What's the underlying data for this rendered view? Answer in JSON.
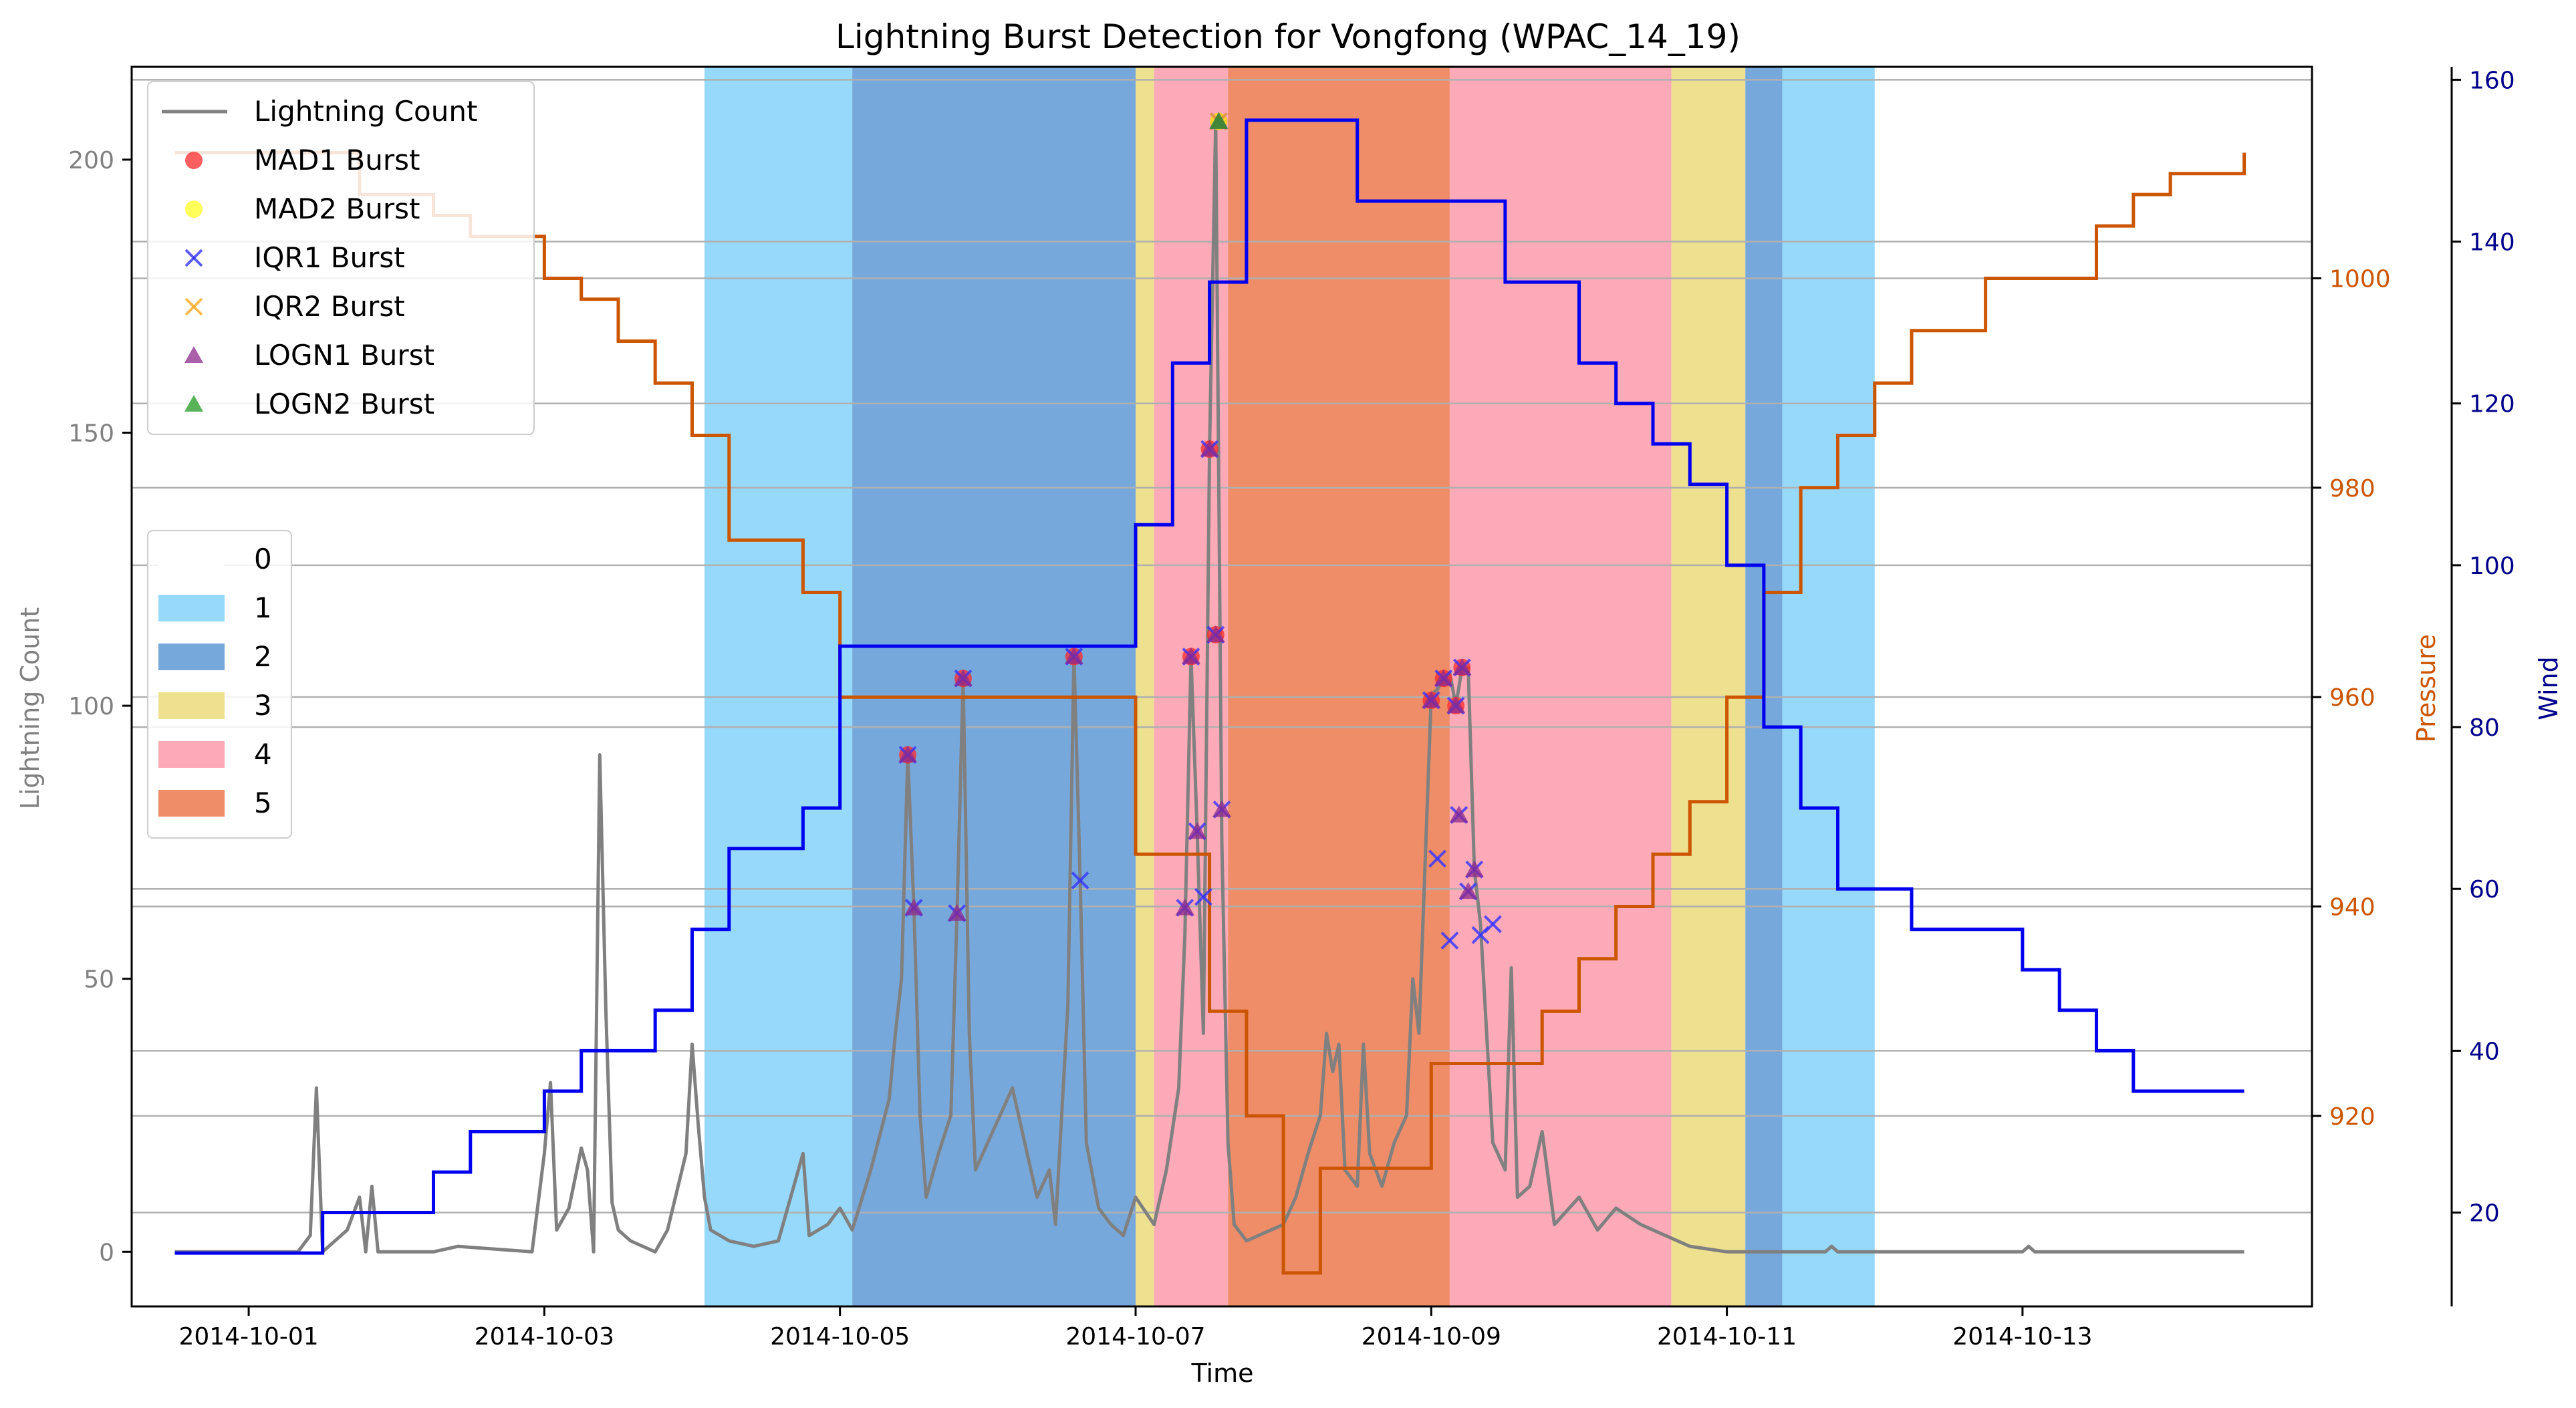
{
  "chart_data": {
    "type": "line",
    "title": "Lightning Burst Detection for Vongfong (WPAC_14_19)",
    "xlabel": "Time",
    "ylabel_left": "Lightning Count",
    "ylabel_pressure": "Pressure",
    "ylabel_wind": "Wind",
    "x_range": [
      "2014-09-30T05:00",
      "2014-10-14T23:00"
    ],
    "ylim_left": [
      -10,
      217
    ],
    "ylim_pressure": [
      901.8,
      1020.2
    ],
    "ylim_wind": [
      8.4,
      161.6
    ],
    "x_ticks": [
      "2014-10-01",
      "2014-10-03",
      "2014-10-05",
      "2014-10-07",
      "2014-10-09",
      "2014-10-11",
      "2014-10-13"
    ],
    "y_ticks_left": [
      0,
      50,
      100,
      150,
      200
    ],
    "y_ticks_pressure": [
      920,
      940,
      960,
      980,
      1000
    ],
    "y_ticks_wind": [
      20,
      40,
      60,
      80,
      100,
      120,
      140,
      160
    ],
    "grid": "horizontal",
    "colors": {
      "lightning": "#808080",
      "pressure": "#cc5500",
      "wind": "#0000ee",
      "pressure_axis": "#cc5500",
      "wind_axis": "#00008b",
      "left_axis": "#808080"
    },
    "category_colors": {
      "0": "#ffffff",
      "1": "#97d9fb",
      "2": "#77a8db",
      "3": "#ede08f",
      "4": "#fcaab8",
      "5": "#ee8d68"
    },
    "category_legend": {
      "entries": [
        {
          "label": "0",
          "color": "#ffffff"
        },
        {
          "label": "1",
          "color": "#97d9fb"
        },
        {
          "label": "2",
          "color": "#77a8db"
        },
        {
          "label": "3",
          "color": "#ede08f"
        },
        {
          "label": "4",
          "color": "#fcaab8"
        },
        {
          "label": "5",
          "color": "#ee8d68"
        }
      ]
    },
    "series_legend": {
      "location": "upper-left",
      "entries": [
        {
          "label": "Lightning Count",
          "marker": "line",
          "color": "#808080"
        },
        {
          "label": "MAD1 Burst",
          "marker": "circle",
          "color": "#ff2a2a"
        },
        {
          "label": "MAD2 Burst",
          "marker": "circle",
          "color": "#ffff22"
        },
        {
          "label": "IQR1 Burst",
          "marker": "x",
          "color": "#3333ff"
        },
        {
          "label": "IQR2 Burst",
          "marker": "x",
          "color": "#ffaa22"
        },
        {
          "label": "LOGN1 Burst",
          "marker": "triangle",
          "color": "#8e2a8e"
        },
        {
          "label": "LOGN2 Burst",
          "marker": "triangle",
          "color": "#229922"
        }
      ]
    },
    "category_bands": [
      {
        "start": "2014-10-04T02:00",
        "end": "2014-10-05T02:00",
        "category": 1
      },
      {
        "start": "2014-10-05T02:00",
        "end": "2014-10-07T00:00",
        "category": 2
      },
      {
        "start": "2014-10-07T00:00",
        "end": "2014-10-07T03:00",
        "category": 3
      },
      {
        "start": "2014-10-07T03:00",
        "end": "2014-10-07T15:00",
        "category": 4
      },
      {
        "start": "2014-10-07T15:00",
        "end": "2014-10-09T03:00",
        "category": 5
      },
      {
        "start": "2014-10-09T03:00",
        "end": "2014-10-10T15:00",
        "category": 4
      },
      {
        "start": "2014-10-10T15:00",
        "end": "2014-10-11T03:00",
        "category": 3
      },
      {
        "start": "2014-10-11T03:00",
        "end": "2014-10-11T09:00",
        "category": 2
      },
      {
        "start": "2014-10-11T09:00",
        "end": "2014-10-12T00:00",
        "category": 1
      }
    ],
    "pressure": [
      [
        "2014-09-30T12:00",
        1012
      ],
      [
        "2014-10-01T18:00",
        1008
      ],
      [
        "2014-10-02T06:00",
        1006
      ],
      [
        "2014-10-02T12:00",
        1004
      ],
      [
        "2014-10-03T00:00",
        1000
      ],
      [
        "2014-10-03T06:00",
        998
      ],
      [
        "2014-10-03T12:00",
        994
      ],
      [
        "2014-10-03T18:00",
        990
      ],
      [
        "2014-10-04T00:00",
        985
      ],
      [
        "2014-10-04T06:00",
        975
      ],
      [
        "2014-10-04T18:00",
        970
      ],
      [
        "2014-10-05T00:00",
        960
      ],
      [
        "2014-10-06T00:00",
        960
      ],
      [
        "2014-10-07T00:00",
        945
      ],
      [
        "2014-10-07T12:00",
        930
      ],
      [
        "2014-10-07T18:00",
        920
      ],
      [
        "2014-10-08T00:00",
        905
      ],
      [
        "2014-10-08T06:00",
        915
      ],
      [
        "2014-10-09T00:00",
        925
      ],
      [
        "2014-10-09T18:00",
        930
      ],
      [
        "2014-10-10T00:00",
        935
      ],
      [
        "2014-10-10T06:00",
        940
      ],
      [
        "2014-10-10T12:00",
        945
      ],
      [
        "2014-10-10T18:00",
        950
      ],
      [
        "2014-10-11T00:00",
        960
      ],
      [
        "2014-10-11T06:00",
        970
      ],
      [
        "2014-10-11T12:00",
        980
      ],
      [
        "2014-10-11T18:00",
        985
      ],
      [
        "2014-10-12T00:00",
        990
      ],
      [
        "2014-10-12T06:00",
        995
      ],
      [
        "2014-10-12T18:00",
        1000
      ],
      [
        "2014-10-13T12:00",
        1005
      ],
      [
        "2014-10-13T18:00",
        1008
      ],
      [
        "2014-10-14T00:00",
        1010
      ],
      [
        "2014-10-14T12:00",
        1012
      ]
    ],
    "wind": [
      [
        "2014-09-30T12:00",
        15
      ],
      [
        "2014-10-01T12:00",
        20
      ],
      [
        "2014-10-02T06:00",
        25
      ],
      [
        "2014-10-02T12:00",
        30
      ],
      [
        "2014-10-03T00:00",
        35
      ],
      [
        "2014-10-03T06:00",
        40
      ],
      [
        "2014-10-03T18:00",
        45
      ],
      [
        "2014-10-04T00:00",
        55
      ],
      [
        "2014-10-04T06:00",
        65
      ],
      [
        "2014-10-04T18:00",
        70
      ],
      [
        "2014-10-05T00:00",
        90
      ],
      [
        "2014-10-06T00:00",
        90
      ],
      [
        "2014-10-07T00:00",
        105
      ],
      [
        "2014-10-07T06:00",
        125
      ],
      [
        "2014-10-07T12:00",
        135
      ],
      [
        "2014-10-07T18:00",
        155
      ],
      [
        "2014-10-08T12:00",
        145
      ],
      [
        "2014-10-09T12:00",
        135
      ],
      [
        "2014-10-10T00:00",
        125
      ],
      [
        "2014-10-10T06:00",
        120
      ],
      [
        "2014-10-10T12:00",
        115
      ],
      [
        "2014-10-10T18:00",
        110
      ],
      [
        "2014-10-11T00:00",
        100
      ],
      [
        "2014-10-11T06:00",
        80
      ],
      [
        "2014-10-11T12:00",
        70
      ],
      [
        "2014-10-11T18:00",
        60
      ],
      [
        "2014-10-12T00:00",
        60
      ],
      [
        "2014-10-12T06:00",
        55
      ],
      [
        "2014-10-13T00:00",
        50
      ],
      [
        "2014-10-13T06:00",
        45
      ],
      [
        "2014-10-13T12:00",
        40
      ],
      [
        "2014-10-13T18:00",
        35
      ],
      [
        "2014-10-14T12:00",
        35
      ]
    ],
    "lightning_count": [
      [
        "2014-09-30T12:00",
        0
      ],
      [
        "2014-10-01T08:00",
        0
      ],
      [
        "2014-10-01T10:00",
        3
      ],
      [
        "2014-10-01T11:00",
        30
      ],
      [
        "2014-10-01T12:00",
        0
      ],
      [
        "2014-10-01T16:00",
        4
      ],
      [
        "2014-10-01T18:00",
        10
      ],
      [
        "2014-10-01T19:00",
        0
      ],
      [
        "2014-10-01T20:00",
        12
      ],
      [
        "2014-10-01T21:00",
        0
      ],
      [
        "2014-10-02T06:00",
        0
      ],
      [
        "2014-10-02T10:00",
        1
      ],
      [
        "2014-10-02T22:00",
        0
      ],
      [
        "2014-10-03T00:00",
        18
      ],
      [
        "2014-10-03T01:00",
        31
      ],
      [
        "2014-10-03T02:00",
        4
      ],
      [
        "2014-10-03T04:00",
        8
      ],
      [
        "2014-10-03T06:00",
        19
      ],
      [
        "2014-10-03T07:00",
        15
      ],
      [
        "2014-10-03T08:00",
        0
      ],
      [
        "2014-10-03T09:00",
        91
      ],
      [
        "2014-10-03T10:00",
        44
      ],
      [
        "2014-10-03T11:00",
        9
      ],
      [
        "2014-10-03T12:00",
        4
      ],
      [
        "2014-10-03T14:00",
        2
      ],
      [
        "2014-10-03T16:00",
        1
      ],
      [
        "2014-10-03T18:00",
        0
      ],
      [
        "2014-10-03T20:00",
        4
      ],
      [
        "2014-10-03T23:00",
        18
      ],
      [
        "2014-10-04T00:00",
        38
      ],
      [
        "2014-10-04T01:00",
        23
      ],
      [
        "2014-10-04T02:00",
        10
      ],
      [
        "2014-10-04T03:00",
        4
      ],
      [
        "2014-10-04T06:00",
        2
      ],
      [
        "2014-10-04T10:00",
        1
      ],
      [
        "2014-10-04T14:00",
        2
      ],
      [
        "2014-10-04T18:00",
        18
      ],
      [
        "2014-10-04T19:00",
        3
      ],
      [
        "2014-10-04T22:00",
        5
      ],
      [
        "2014-10-05T00:00",
        8
      ],
      [
        "2014-10-05T02:00",
        4
      ],
      [
        "2014-10-05T05:00",
        15
      ],
      [
        "2014-10-05T08:00",
        28
      ],
      [
        "2014-10-05T09:00",
        40
      ],
      [
        "2014-10-05T10:00",
        50
      ],
      [
        "2014-10-05T11:00",
        91
      ],
      [
        "2014-10-05T12:00",
        63
      ],
      [
        "2014-10-05T13:00",
        25
      ],
      [
        "2014-10-05T14:00",
        10
      ],
      [
        "2014-10-05T16:00",
        18
      ],
      [
        "2014-10-05T18:00",
        25
      ],
      [
        "2014-10-05T19:00",
        62
      ],
      [
        "2014-10-05T20:00",
        105
      ],
      [
        "2014-10-05T21:00",
        40
      ],
      [
        "2014-10-05T22:00",
        15
      ],
      [
        "2014-10-06T00:00",
        20
      ],
      [
        "2014-10-06T02:00",
        25
      ],
      [
        "2014-10-06T04:00",
        30
      ],
      [
        "2014-10-06T06:00",
        20
      ],
      [
        "2014-10-06T08:00",
        10
      ],
      [
        "2014-10-06T10:00",
        15
      ],
      [
        "2014-10-06T11:00",
        5
      ],
      [
        "2014-10-06T13:00",
        45
      ],
      [
        "2014-10-06T14:00",
        109
      ],
      [
        "2014-10-06T15:00",
        68
      ],
      [
        "2014-10-06T16:00",
        20
      ],
      [
        "2014-10-06T18:00",
        8
      ],
      [
        "2014-10-06T20:00",
        5
      ],
      [
        "2014-10-06T22:00",
        3
      ],
      [
        "2014-10-07T00:00",
        10
      ],
      [
        "2014-10-07T03:00",
        5
      ],
      [
        "2014-10-07T05:00",
        15
      ],
      [
        "2014-10-07T07:00",
        30
      ],
      [
        "2014-10-07T08:00",
        58
      ],
      [
        "2014-10-07T09:00",
        109
      ],
      [
        "2014-10-07T10:00",
        77
      ],
      [
        "2014-10-07T11:00",
        40
      ],
      [
        "2014-10-07T12:00",
        147
      ],
      [
        "2014-10-07T13:00",
        207
      ],
      [
        "2014-10-07T14:00",
        75
      ],
      [
        "2014-10-07T15:00",
        20
      ],
      [
        "2014-10-07T16:00",
        5
      ],
      [
        "2014-10-07T18:00",
        2
      ],
      [
        "2014-10-08T00:00",
        5
      ],
      [
        "2014-10-08T02:00",
        10
      ],
      [
        "2014-10-08T04:00",
        18
      ],
      [
        "2014-10-08T06:00",
        25
      ],
      [
        "2014-10-08T07:00",
        40
      ],
      [
        "2014-10-08T08:00",
        33
      ],
      [
        "2014-10-08T09:00",
        38
      ],
      [
        "2014-10-08T10:00",
        15
      ],
      [
        "2014-10-08T12:00",
        12
      ],
      [
        "2014-10-08T13:00",
        38
      ],
      [
        "2014-10-08T14:00",
        18
      ],
      [
        "2014-10-08T16:00",
        12
      ],
      [
        "2014-10-08T18:00",
        20
      ],
      [
        "2014-10-08T20:00",
        25
      ],
      [
        "2014-10-08T21:00",
        50
      ],
      [
        "2014-10-08T22:00",
        40
      ],
      [
        "2014-10-09T00:00",
        102
      ],
      [
        "2014-10-09T01:00",
        103
      ],
      [
        "2014-10-09T02:00",
        105
      ],
      [
        "2014-10-09T03:00",
        106
      ],
      [
        "2014-10-09T04:00",
        100
      ],
      [
        "2014-10-09T05:00",
        107
      ],
      [
        "2014-10-09T06:00",
        107
      ],
      [
        "2014-10-09T07:00",
        70
      ],
      [
        "2014-10-09T08:00",
        60
      ],
      [
        "2014-10-09T10:00",
        20
      ],
      [
        "2014-10-09T12:00",
        15
      ],
      [
        "2014-10-09T13:00",
        52
      ],
      [
        "2014-10-09T14:00",
        10
      ],
      [
        "2014-10-09T16:00",
        12
      ],
      [
        "2014-10-09T18:00",
        22
      ],
      [
        "2014-10-09T20:00",
        5
      ],
      [
        "2014-10-10T00:00",
        10
      ],
      [
        "2014-10-10T03:00",
        4
      ],
      [
        "2014-10-10T06:00",
        8
      ],
      [
        "2014-10-10T10:00",
        5
      ],
      [
        "2014-10-10T14:00",
        3
      ],
      [
        "2014-10-10T18:00",
        1
      ],
      [
        "2014-10-11T00:00",
        0
      ],
      [
        "2014-10-11T16:00",
        0
      ],
      [
        "2014-10-11T17:00",
        1
      ],
      [
        "2014-10-11T18:00",
        0
      ],
      [
        "2014-10-13T00:00",
        0
      ],
      [
        "2014-10-13T01:00",
        1
      ],
      [
        "2014-10-13T02:00",
        0
      ],
      [
        "2014-10-14T12:00",
        0
      ]
    ],
    "bursts": [
      {
        "time": "2014-10-05T11:00",
        "value": 91,
        "markers": [
          "MAD1",
          "IQR1",
          "LOGN1"
        ]
      },
      {
        "time": "2014-10-05T12:00",
        "value": 63,
        "markers": [
          "IQR1",
          "LOGN1"
        ]
      },
      {
        "time": "2014-10-05T19:00",
        "value": 62,
        "markers": [
          "IQR1",
          "LOGN1"
        ]
      },
      {
        "time": "2014-10-05T20:00",
        "value": 105,
        "markers": [
          "MAD1",
          "IQR1",
          "LOGN1"
        ]
      },
      {
        "time": "2014-10-06T14:00",
        "value": 109,
        "markers": [
          "MAD1",
          "IQR1",
          "LOGN1"
        ]
      },
      {
        "time": "2014-10-06T15:00",
        "value": 68,
        "markers": [
          "IQR1"
        ]
      },
      {
        "time": "2014-10-07T08:00",
        "value": 63,
        "markers": [
          "IQR1",
          "LOGN1"
        ]
      },
      {
        "time": "2014-10-07T09:00",
        "value": 109,
        "markers": [
          "MAD1",
          "IQR1",
          "LOGN1"
        ]
      },
      {
        "time": "2014-10-07T10:00",
        "value": 77,
        "markers": [
          "IQR1",
          "LOGN1"
        ]
      },
      {
        "time": "2014-10-07T11:00",
        "value": 65,
        "markers": [
          "IQR1"
        ]
      },
      {
        "time": "2014-10-07T12:00",
        "value": 147,
        "markers": [
          "MAD1",
          "IQR1",
          "LOGN1"
        ]
      },
      {
        "time": "2014-10-07T13:00",
        "value": 113,
        "markers": [
          "MAD1",
          "IQR1",
          "LOGN1"
        ]
      },
      {
        "time": "2014-10-07T13:30",
        "value": 207,
        "markers": [
          "MAD1",
          "MAD2",
          "IQR1",
          "IQR2",
          "LOGN1",
          "LOGN2"
        ]
      },
      {
        "time": "2014-10-07T14:00",
        "value": 81,
        "markers": [
          "IQR1",
          "LOGN1"
        ]
      },
      {
        "time": "2014-10-09T00:00",
        "value": 101,
        "markers": [
          "MAD1",
          "IQR1",
          "LOGN1"
        ]
      },
      {
        "time": "2014-10-09T01:00",
        "value": 72,
        "markers": [
          "IQR1"
        ]
      },
      {
        "time": "2014-10-09T02:00",
        "value": 105,
        "markers": [
          "MAD1",
          "IQR1",
          "LOGN1"
        ]
      },
      {
        "time": "2014-10-09T03:00",
        "value": 57,
        "markers": [
          "IQR1"
        ]
      },
      {
        "time": "2014-10-09T04:00",
        "value": 100,
        "markers": [
          "MAD1",
          "IQR1",
          "LOGN1"
        ]
      },
      {
        "time": "2014-10-09T04:30",
        "value": 80,
        "markers": [
          "IQR1",
          "LOGN1"
        ]
      },
      {
        "time": "2014-10-09T05:00",
        "value": 107,
        "markers": [
          "MAD1",
          "IQR1",
          "LOGN1"
        ]
      },
      {
        "time": "2014-10-09T06:00",
        "value": 66,
        "markers": [
          "IQR1",
          "LOGN1"
        ]
      },
      {
        "time": "2014-10-09T07:00",
        "value": 70,
        "markers": [
          "IQR1",
          "LOGN1"
        ]
      },
      {
        "time": "2014-10-09T08:00",
        "value": 58,
        "markers": [
          "IQR1"
        ]
      },
      {
        "time": "2014-10-09T10:00",
        "value": 60,
        "markers": [
          "IQR1"
        ]
      }
    ]
  }
}
